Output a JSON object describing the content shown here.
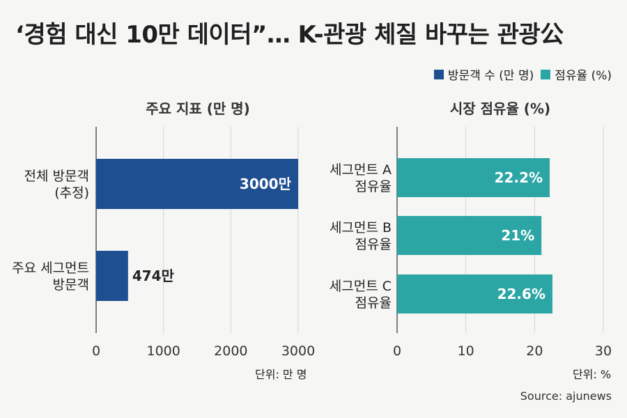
{
  "title": "‘경험 대신 10만 데이터”… K-관광 체질 바꾸는 관광公",
  "legend": [
    {
      "label": "방문객 수 (만 명)",
      "color": "#1d4f91"
    },
    {
      "label": "점유율 (%)",
      "color": "#2ba6a4"
    }
  ],
  "source": "Source: ajunews",
  "chart_data": [
    {
      "type": "bar",
      "orientation": "horizontal",
      "title": "주요 지표 (만 명)",
      "categories": [
        [
          "전체 방문객",
          "(추정)"
        ],
        [
          "주요 세그먼트",
          "방문객"
        ]
      ],
      "values": [
        3000,
        474
      ],
      "value_labels": [
        "3000만",
        "474만"
      ],
      "xlim": [
        0,
        3000
      ],
      "ticks": [
        0,
        1000,
        2000,
        3000
      ],
      "unit_label": "단위: 만 명",
      "color": "#1d4f91",
      "grid": true
    },
    {
      "type": "bar",
      "orientation": "horizontal",
      "title": "시장 점유율 (%)",
      "categories": [
        [
          "세그먼트 A",
          "점유율"
        ],
        [
          "세그먼트 B",
          "점유율"
        ],
        [
          "세그먼트 C",
          "점유율"
        ]
      ],
      "values": [
        22.2,
        21,
        22.6
      ],
      "value_labels": [
        "22.2%",
        "21%",
        "22.6%"
      ],
      "xlim": [
        0,
        30
      ],
      "ticks": [
        0,
        10,
        20,
        30
      ],
      "unit_label": "단위: %",
      "color": "#2ba6a4",
      "grid": true
    }
  ]
}
